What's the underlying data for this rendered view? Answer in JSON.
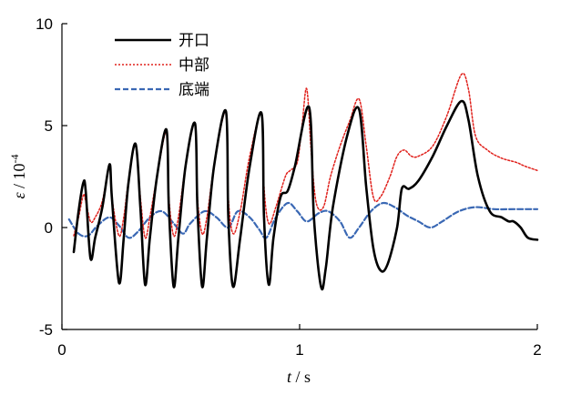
{
  "chart_data": {
    "type": "line",
    "xlabel_var": "t",
    "xlabel_unit": " / s",
    "ylabel_var": "ε",
    "ylabel_unit": " / 10",
    "ylabel_exp": "-4",
    "xlim": [
      0,
      2
    ],
    "ylim": [
      -5,
      10
    ],
    "x_ticks": [
      0,
      1,
      2
    ],
    "x_tick_labels": [
      "0",
      "1",
      "2"
    ],
    "y_ticks": [
      -5,
      0,
      5,
      10
    ],
    "y_tick_labels": [
      "-5",
      "0",
      "5",
      "10"
    ],
    "grid": false,
    "legend_position": "top-left",
    "series": [
      {
        "name": "开口",
        "color": "#000000",
        "style": "solid",
        "points": [
          [
            0.05,
            -1.2
          ],
          [
            0.07,
            0.8
          ],
          [
            0.09,
            2.2
          ],
          [
            0.1,
            1.8
          ],
          [
            0.12,
            -1.5
          ],
          [
            0.14,
            -0.5
          ],
          [
            0.17,
            1.0
          ],
          [
            0.2,
            3.1
          ],
          [
            0.21,
            1.5
          ],
          [
            0.24,
            -2.7
          ],
          [
            0.26,
            -0.5
          ],
          [
            0.28,
            2.2
          ],
          [
            0.31,
            4.1
          ],
          [
            0.33,
            1.0
          ],
          [
            0.35,
            -2.8
          ],
          [
            0.37,
            -0.5
          ],
          [
            0.4,
            2.5
          ],
          [
            0.44,
            4.8
          ],
          [
            0.45,
            1.0
          ],
          [
            0.47,
            -2.9
          ],
          [
            0.49,
            -0.5
          ],
          [
            0.52,
            3.0
          ],
          [
            0.56,
            5.1
          ],
          [
            0.57,
            1.0
          ],
          [
            0.59,
            -2.9
          ],
          [
            0.61,
            -0.5
          ],
          [
            0.64,
            3.0
          ],
          [
            0.69,
            5.7
          ],
          [
            0.7,
            0.5
          ],
          [
            0.72,
            -2.9
          ],
          [
            0.75,
            -0.5
          ],
          [
            0.79,
            3.0
          ],
          [
            0.84,
            5.6
          ],
          [
            0.85,
            0.5
          ],
          [
            0.87,
            -2.8
          ],
          [
            0.89,
            -0.5
          ],
          [
            0.92,
            1.5
          ],
          [
            0.95,
            1.8
          ],
          [
            0.98,
            3.0
          ],
          [
            1.04,
            5.9
          ],
          [
            1.06,
            0.5
          ],
          [
            1.09,
            -2.9
          ],
          [
            1.11,
            -2.0
          ],
          [
            1.14,
            1.0
          ],
          [
            1.2,
            4.5
          ],
          [
            1.25,
            5.8
          ],
          [
            1.28,
            2.0
          ],
          [
            1.31,
            -1.0
          ],
          [
            1.34,
            -2.1
          ],
          [
            1.37,
            -1.8
          ],
          [
            1.41,
            0.0
          ],
          [
            1.43,
            1.9
          ],
          [
            1.46,
            1.9
          ],
          [
            1.5,
            2.3
          ],
          [
            1.56,
            3.5
          ],
          [
            1.62,
            5.0
          ],
          [
            1.68,
            6.2
          ],
          [
            1.71,
            5.3
          ],
          [
            1.75,
            2.5
          ],
          [
            1.8,
            0.8
          ],
          [
            1.85,
            0.5
          ],
          [
            1.88,
            0.3
          ],
          [
            1.9,
            0.3
          ],
          [
            1.93,
            0.0
          ],
          [
            1.96,
            -0.5
          ],
          [
            2.0,
            -0.6
          ]
        ]
      },
      {
        "name": "中部",
        "color": "#e0201b",
        "style": "dotted",
        "points": [
          [
            0.05,
            -0.4
          ],
          [
            0.07,
            0.5
          ],
          [
            0.09,
            1.6
          ],
          [
            0.1,
            1.3
          ],
          [
            0.12,
            0.3
          ],
          [
            0.14,
            0.5
          ],
          [
            0.17,
            1.3
          ],
          [
            0.2,
            3.0
          ],
          [
            0.21,
            1.5
          ],
          [
            0.24,
            -0.4
          ],
          [
            0.26,
            0.5
          ],
          [
            0.28,
            2.3
          ],
          [
            0.31,
            4.1
          ],
          [
            0.33,
            1.5
          ],
          [
            0.35,
            -0.5
          ],
          [
            0.37,
            0.5
          ],
          [
            0.4,
            2.5
          ],
          [
            0.44,
            4.7
          ],
          [
            0.45,
            1.5
          ],
          [
            0.47,
            -0.4
          ],
          [
            0.49,
            0.5
          ],
          [
            0.52,
            3.0
          ],
          [
            0.56,
            5.1
          ],
          [
            0.57,
            1.5
          ],
          [
            0.59,
            -0.3
          ],
          [
            0.61,
            0.5
          ],
          [
            0.64,
            3.0
          ],
          [
            0.69,
            5.7
          ],
          [
            0.7,
            1.5
          ],
          [
            0.72,
            -0.3
          ],
          [
            0.75,
            0.8
          ],
          [
            0.79,
            3.5
          ],
          [
            0.84,
            5.6
          ],
          [
            0.85,
            2.0
          ],
          [
            0.87,
            0.2
          ],
          [
            0.9,
            1.0
          ],
          [
            0.94,
            2.5
          ],
          [
            0.96,
            2.8
          ],
          [
            0.99,
            3.2
          ],
          [
            1.01,
            5.0
          ],
          [
            1.03,
            6.8
          ],
          [
            1.05,
            3.5
          ],
          [
            1.07,
            1.2
          ],
          [
            1.1,
            1.0
          ],
          [
            1.13,
            2.5
          ],
          [
            1.17,
            4.0
          ],
          [
            1.21,
            5.2
          ],
          [
            1.25,
            6.3
          ],
          [
            1.28,
            4.0
          ],
          [
            1.31,
            1.5
          ],
          [
            1.34,
            1.5
          ],
          [
            1.38,
            2.5
          ],
          [
            1.41,
            3.5
          ],
          [
            1.44,
            3.8
          ],
          [
            1.47,
            3.5
          ],
          [
            1.5,
            3.5
          ],
          [
            1.56,
            4.0
          ],
          [
            1.62,
            5.5
          ],
          [
            1.68,
            7.5
          ],
          [
            1.71,
            6.8
          ],
          [
            1.74,
            4.5
          ],
          [
            1.79,
            3.8
          ],
          [
            1.85,
            3.4
          ],
          [
            1.91,
            3.2
          ],
          [
            1.95,
            3.0
          ],
          [
            2.0,
            2.8
          ]
        ]
      },
      {
        "name": "底端",
        "color": "#3a68b4",
        "style": "dashed",
        "points": [
          [
            0.03,
            0.4
          ],
          [
            0.07,
            -0.3
          ],
          [
            0.11,
            -0.4
          ],
          [
            0.15,
            0.1
          ],
          [
            0.2,
            0.5
          ],
          [
            0.24,
            0.1
          ],
          [
            0.28,
            -0.5
          ],
          [
            0.32,
            -0.2
          ],
          [
            0.37,
            0.5
          ],
          [
            0.42,
            0.8
          ],
          [
            0.47,
            0.2
          ],
          [
            0.51,
            -0.3
          ],
          [
            0.54,
            0.2
          ],
          [
            0.6,
            0.8
          ],
          [
            0.65,
            0.5
          ],
          [
            0.7,
            0.0
          ],
          [
            0.74,
            0.8
          ],
          [
            0.79,
            0.5
          ],
          [
            0.83,
            -0.1
          ],
          [
            0.86,
            -0.5
          ],
          [
            0.9,
            0.5
          ],
          [
            0.95,
            1.2
          ],
          [
            0.99,
            0.8
          ],
          [
            1.03,
            0.3
          ],
          [
            1.08,
            0.7
          ],
          [
            1.12,
            0.8
          ],
          [
            1.17,
            0.3
          ],
          [
            1.21,
            -0.5
          ],
          [
            1.25,
            0.0
          ],
          [
            1.3,
            0.8
          ],
          [
            1.35,
            1.2
          ],
          [
            1.4,
            1.0
          ],
          [
            1.45,
            0.6
          ],
          [
            1.5,
            0.3
          ],
          [
            1.55,
            0.0
          ],
          [
            1.6,
            0.3
          ],
          [
            1.67,
            0.8
          ],
          [
            1.74,
            1.0
          ],
          [
            1.82,
            0.9
          ],
          [
            1.9,
            0.9
          ],
          [
            2.0,
            0.9
          ]
        ]
      }
    ]
  }
}
